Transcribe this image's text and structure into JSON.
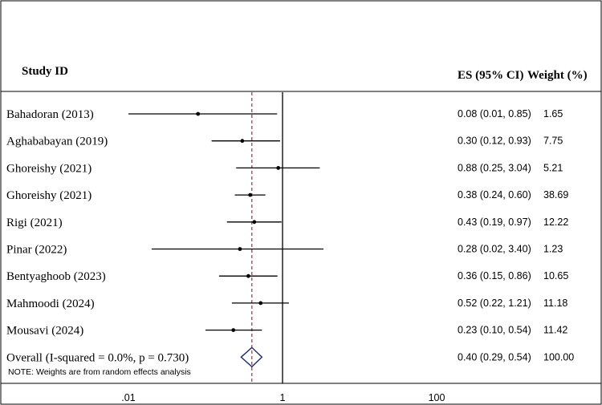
{
  "chart_data": {
    "type": "forest",
    "scale": "log",
    "header": {
      "study": "Study ID",
      "es": "ES (95% CI)",
      "weight": "Weight (%)"
    },
    "studies": [
      {
        "label": "Bahadoran (2013)",
        "es": 0.08,
        "lower": 0.01,
        "upper": 0.85,
        "es_text": "0.08 (0.01, 0.85)",
        "weight": "1.65"
      },
      {
        "label": "Aghababayan (2019)",
        "es": 0.3,
        "lower": 0.12,
        "upper": 0.93,
        "es_text": "0.30 (0.12, 0.93)",
        "weight": "7.75"
      },
      {
        "label": "Ghoreishy (2021)",
        "es": 0.88,
        "lower": 0.25,
        "upper": 3.04,
        "es_text": "0.88 (0.25, 3.04)",
        "weight": "5.21"
      },
      {
        "label": "Ghoreishy (2021)",
        "es": 0.38,
        "lower": 0.24,
        "upper": 0.6,
        "es_text": "0.38 (0.24, 0.60)",
        "weight": "38.69"
      },
      {
        "label": "Rigi (2021)",
        "es": 0.43,
        "lower": 0.19,
        "upper": 0.97,
        "es_text": "0.43 (0.19, 0.97)",
        "weight": "12.22"
      },
      {
        "label": "Pinar (2022)",
        "es": 0.28,
        "lower": 0.02,
        "upper": 3.4,
        "es_text": "0.28 (0.02, 3.40)",
        "weight": "1.23"
      },
      {
        "label": "Bentyaghoob (2023)",
        "es": 0.36,
        "lower": 0.15,
        "upper": 0.86,
        "es_text": "0.36 (0.15, 0.86)",
        "weight": "10.65"
      },
      {
        "label": "Mahmoodi (2024)",
        "es": 0.52,
        "lower": 0.22,
        "upper": 1.21,
        "es_text": "0.52 (0.22, 1.21)",
        "weight": "11.18"
      },
      {
        "label": "Mousavi (2024)",
        "es": 0.23,
        "lower": 0.1,
        "upper": 0.54,
        "es_text": "0.23 (0.10, 0.54)",
        "weight": "11.42"
      }
    ],
    "overall": {
      "label": "Overall  (I-squared = 0.0%, p = 0.730)",
      "es": 0.4,
      "lower": 0.29,
      "upper": 0.54,
      "es_text": "0.40 (0.29, 0.54)",
      "weight": "100.00"
    },
    "note": "NOTE: Weights are from random effects analysis",
    "axis": {
      "ticks": [
        {
          "label": ".01",
          "value": 0.01
        },
        {
          "label": "1",
          "value": 1
        },
        {
          "label": "100",
          "value": 100
        }
      ],
      "null_value": 1,
      "display_range": [
        0.0048,
        1500
      ]
    },
    "colors": {
      "estimate_line": "#a0303a",
      "diamond": "#1f2a6b",
      "ink": "#000000"
    }
  }
}
